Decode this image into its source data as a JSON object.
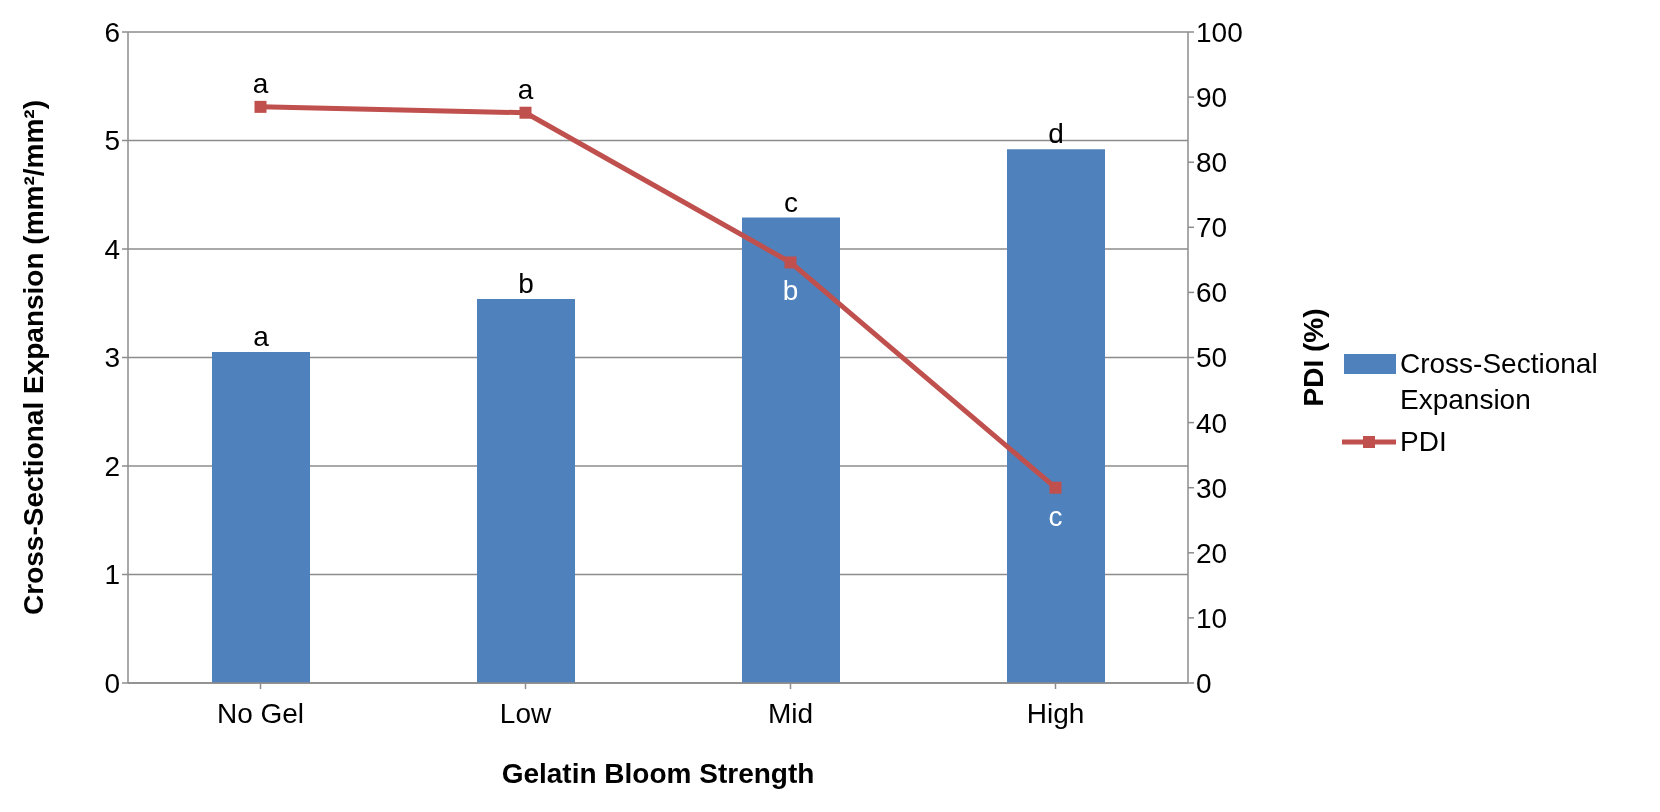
{
  "chart_data": {
    "type": "bar",
    "xlabel": "Gelatin Bloom Strength",
    "ylabel": "Cross-Sectional Expansion (mm²/mm²)",
    "y2label": "PDI (%)",
    "categories": [
      "No Gel",
      "Low",
      "Mid",
      "High"
    ],
    "series": [
      {
        "name": "Cross-Sectional Expansion",
        "color": "#4f81bd",
        "values": [
          3.05,
          3.54,
          4.29,
          4.92
        ],
        "value_labels": [
          "a",
          "b",
          "c",
          "d"
        ]
      },
      {
        "name": "PDI",
        "type": "line",
        "axis": "y2",
        "color": "#c0504d",
        "values": [
          88.5,
          87.6,
          64.6,
          30
        ],
        "value_labels": [
          "a",
          "a",
          "b",
          "c"
        ],
        "marker": "square"
      }
    ],
    "ylim": [
      0,
      6
    ],
    "yticks": [
      0,
      1,
      2,
      3,
      4,
      5,
      6
    ],
    "y2lim": [
      0,
      100
    ],
    "y2ticks": [
      0,
      10,
      20,
      30,
      40,
      50,
      60,
      70,
      80,
      90,
      100
    ],
    "grid": "y",
    "legend": "right"
  }
}
